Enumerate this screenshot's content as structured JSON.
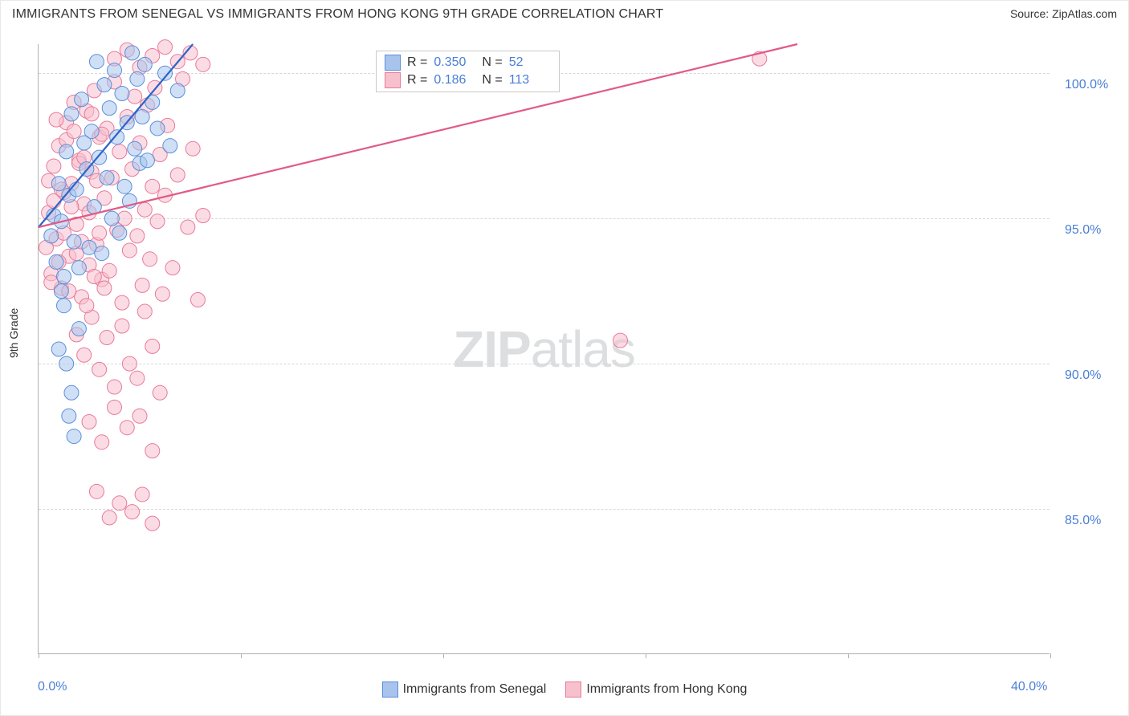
{
  "header": {
    "title": "IMMIGRANTS FROM SENEGAL VS IMMIGRANTS FROM HONG KONG 9TH GRADE CORRELATION CHART",
    "source_label": "Source: ",
    "source_value": "ZipAtlas.com"
  },
  "watermark": {
    "part1": "ZIP",
    "part2": "atlas"
  },
  "chart": {
    "type": "scatter",
    "ylabel": "9th Grade",
    "background_color": "#ffffff",
    "grid_color": "#d8d8d8",
    "axis_color": "#b0b0b0",
    "tick_label_color": "#4a7fd6",
    "xlim": [
      0,
      40
    ],
    "ylim": [
      80,
      101
    ],
    "x_ticks": [
      0,
      8,
      16,
      24,
      32,
      40
    ],
    "x_tick_labels": [
      "0.0%",
      "",
      "",
      "",
      "",
      "40.0%"
    ],
    "y_gridlines": [
      85,
      90,
      95,
      100
    ],
    "y_tick_labels": [
      "85.0%",
      "90.0%",
      "95.0%",
      "100.0%"
    ],
    "marker_radius": 9,
    "marker_opacity": 0.55,
    "line_width": 2.2,
    "series": [
      {
        "name": "Immigrants from Senegal",
        "color_fill": "#a8c4ed",
        "color_stroke": "#5b8fd8",
        "line_color": "#2f63c7",
        "R": "0.350",
        "N": "52",
        "trend_line": {
          "x1": 0,
          "y1": 94.7,
          "x2": 6.1,
          "y2": 101
        },
        "points": [
          [
            0.5,
            94.4
          ],
          [
            0.6,
            95.1
          ],
          [
            0.7,
            93.5
          ],
          [
            0.8,
            96.2
          ],
          [
            0.9,
            94.9
          ],
          [
            1.0,
            93.0
          ],
          [
            1.1,
            97.3
          ],
          [
            1.2,
            95.8
          ],
          [
            1.3,
            98.6
          ],
          [
            1.4,
            94.2
          ],
          [
            1.5,
            96.0
          ],
          [
            1.6,
            93.3
          ],
          [
            1.7,
            99.1
          ],
          [
            1.8,
            97.6
          ],
          [
            1.9,
            96.7
          ],
          [
            2.0,
            94.0
          ],
          [
            2.1,
            98.0
          ],
          [
            2.2,
            95.4
          ],
          [
            2.3,
            100.4
          ],
          [
            2.4,
            97.1
          ],
          [
            2.5,
            93.8
          ],
          [
            2.6,
            99.6
          ],
          [
            2.7,
            96.4
          ],
          [
            2.8,
            98.8
          ],
          [
            2.9,
            95.0
          ],
          [
            3.0,
            100.1
          ],
          [
            3.1,
            97.8
          ],
          [
            3.2,
            94.5
          ],
          [
            3.3,
            99.3
          ],
          [
            3.4,
            96.1
          ],
          [
            3.5,
            98.3
          ],
          [
            3.6,
            95.6
          ],
          [
            3.7,
            100.7
          ],
          [
            3.8,
            97.4
          ],
          [
            3.9,
            99.8
          ],
          [
            4.0,
            96.9
          ],
          [
            4.1,
            98.5
          ],
          [
            4.2,
            100.3
          ],
          [
            4.3,
            97.0
          ],
          [
            4.5,
            99.0
          ],
          [
            4.7,
            98.1
          ],
          [
            5.0,
            100.0
          ],
          [
            5.2,
            97.5
          ],
          [
            5.5,
            99.4
          ],
          [
            0.8,
            90.5
          ],
          [
            1.2,
            88.2
          ],
          [
            1.0,
            92.0
          ],
          [
            1.4,
            87.5
          ],
          [
            1.1,
            90.0
          ],
          [
            0.9,
            92.5
          ],
          [
            1.3,
            89.0
          ],
          [
            1.6,
            91.2
          ]
        ]
      },
      {
        "name": "Immigrants from Hong Kong",
        "color_fill": "#f7c0cd",
        "color_stroke": "#e87a9a",
        "line_color": "#e15a87",
        "R": "0.186",
        "N": "113",
        "trend_line": {
          "x1": 0,
          "y1": 94.7,
          "x2": 30,
          "y2": 101
        },
        "points": [
          [
            0.4,
            95.2
          ],
          [
            0.5,
            93.1
          ],
          [
            0.6,
            96.8
          ],
          [
            0.7,
            94.3
          ],
          [
            0.8,
            97.5
          ],
          [
            0.9,
            92.6
          ],
          [
            1.0,
            95.9
          ],
          [
            1.1,
            98.3
          ],
          [
            1.2,
            93.7
          ],
          [
            1.3,
            96.2
          ],
          [
            1.4,
            99.0
          ],
          [
            1.5,
            94.8
          ],
          [
            1.6,
            97.0
          ],
          [
            1.7,
            92.3
          ],
          [
            1.8,
            95.5
          ],
          [
            1.9,
            98.7
          ],
          [
            2.0,
            93.4
          ],
          [
            2.1,
            96.6
          ],
          [
            2.2,
            99.4
          ],
          [
            2.3,
            94.1
          ],
          [
            2.4,
            97.8
          ],
          [
            2.5,
            92.9
          ],
          [
            2.6,
            95.7
          ],
          [
            2.7,
            98.1
          ],
          [
            2.8,
            93.2
          ],
          [
            2.9,
            96.4
          ],
          [
            3.0,
            99.7
          ],
          [
            3.1,
            94.6
          ],
          [
            3.2,
            97.3
          ],
          [
            3.3,
            92.1
          ],
          [
            3.4,
            95.0
          ],
          [
            3.5,
            98.5
          ],
          [
            3.6,
            93.9
          ],
          [
            3.7,
            96.7
          ],
          [
            3.8,
            99.2
          ],
          [
            3.9,
            94.4
          ],
          [
            4.0,
            97.6
          ],
          [
            4.1,
            92.7
          ],
          [
            4.2,
            95.3
          ],
          [
            4.3,
            98.9
          ],
          [
            4.4,
            93.6
          ],
          [
            4.5,
            96.1
          ],
          [
            4.6,
            99.5
          ],
          [
            4.7,
            94.9
          ],
          [
            4.8,
            97.2
          ],
          [
            4.9,
            92.4
          ],
          [
            5.0,
            95.8
          ],
          [
            5.1,
            98.2
          ],
          [
            5.3,
            93.3
          ],
          [
            5.5,
            96.5
          ],
          [
            5.7,
            99.8
          ],
          [
            5.9,
            94.7
          ],
          [
            6.1,
            97.4
          ],
          [
            6.3,
            92.2
          ],
          [
            6.5,
            95.1
          ],
          [
            3.0,
            100.5
          ],
          [
            3.5,
            100.8
          ],
          [
            4.0,
            100.2
          ],
          [
            4.5,
            100.6
          ],
          [
            5.0,
            100.9
          ],
          [
            5.5,
            100.4
          ],
          [
            6.0,
            100.7
          ],
          [
            6.5,
            100.3
          ],
          [
            1.5,
            91.0
          ],
          [
            1.8,
            90.3
          ],
          [
            2.1,
            91.6
          ],
          [
            2.4,
            89.8
          ],
          [
            2.7,
            90.9
          ],
          [
            3.0,
            89.2
          ],
          [
            3.3,
            91.3
          ],
          [
            3.6,
            90.0
          ],
          [
            3.9,
            89.5
          ],
          [
            4.2,
            91.8
          ],
          [
            4.5,
            90.6
          ],
          [
            4.8,
            89.0
          ],
          [
            2.0,
            88.0
          ],
          [
            2.5,
            87.3
          ],
          [
            3.0,
            88.5
          ],
          [
            3.5,
            87.8
          ],
          [
            4.0,
            88.2
          ],
          [
            4.5,
            87.0
          ],
          [
            2.3,
            85.6
          ],
          [
            2.8,
            84.7
          ],
          [
            3.2,
            85.2
          ],
          [
            3.7,
            84.9
          ],
          [
            4.1,
            85.5
          ],
          [
            4.5,
            84.5
          ],
          [
            28.5,
            100.5
          ],
          [
            23.0,
            90.8
          ],
          [
            0.3,
            94.0
          ],
          [
            0.4,
            96.3
          ],
          [
            0.5,
            92.8
          ],
          [
            0.6,
            95.6
          ],
          [
            0.7,
            98.4
          ],
          [
            0.8,
            93.5
          ],
          [
            0.9,
            96.0
          ],
          [
            1.0,
            94.5
          ],
          [
            1.1,
            97.7
          ],
          [
            1.2,
            92.5
          ],
          [
            1.3,
            95.4
          ],
          [
            1.4,
            98.0
          ],
          [
            1.5,
            93.8
          ],
          [
            1.6,
            96.9
          ],
          [
            1.7,
            94.2
          ],
          [
            1.8,
            97.1
          ],
          [
            1.9,
            92.0
          ],
          [
            2.0,
            95.2
          ],
          [
            2.1,
            98.6
          ],
          [
            2.2,
            93.0
          ],
          [
            2.3,
            96.3
          ],
          [
            2.4,
            94.5
          ],
          [
            2.5,
            97.9
          ],
          [
            2.6,
            92.6
          ]
        ]
      }
    ]
  },
  "legend_top_labels": {
    "R": "R =",
    "N": "N ="
  },
  "legend_bottom": [
    {
      "label": "Immigrants from Senegal",
      "fill": "#a8c4ed",
      "stroke": "#5b8fd8"
    },
    {
      "label": "Immigrants from Hong Kong",
      "fill": "#f7c0cd",
      "stroke": "#e87a9a"
    }
  ]
}
